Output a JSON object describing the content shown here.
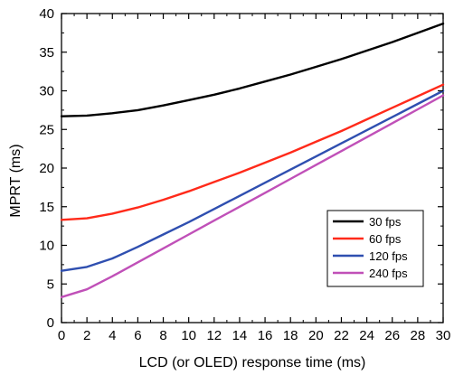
{
  "chart_data": {
    "type": "line",
    "title": "",
    "xlabel": "LCD (or OLED) response time (ms)",
    "ylabel": "MPRT (ms)",
    "xlim": [
      0,
      30
    ],
    "ylim": [
      0,
      40
    ],
    "xticks": [
      "0",
      "2",
      "4",
      "6",
      "8",
      "10",
      "12",
      "14",
      "16",
      "18",
      "20",
      "22",
      "24",
      "26",
      "28",
      "30"
    ],
    "yticks": [
      "0",
      "5",
      "10",
      "15",
      "20",
      "25",
      "30",
      "35",
      "40"
    ],
    "grid": false,
    "legend_position": "bottom-right",
    "x": [
      0,
      2,
      4,
      6,
      8,
      10,
      12,
      14,
      16,
      18,
      20,
      22,
      24,
      26,
      28,
      30
    ],
    "series": [
      {
        "name": "30 fps",
        "color": "#000000",
        "values": [
          26.7,
          26.8,
          27.1,
          27.5,
          28.1,
          28.8,
          29.5,
          30.3,
          31.2,
          32.1,
          33.1,
          34.1,
          35.2,
          36.3,
          37.5,
          38.7
        ]
      },
      {
        "name": "60 fps",
        "color": "#ff2a1a",
        "values": [
          13.3,
          13.5,
          14.1,
          14.9,
          15.9,
          17.0,
          18.2,
          19.4,
          20.7,
          22.0,
          23.4,
          24.8,
          26.3,
          27.8,
          29.3,
          30.8
        ]
      },
      {
        "name": "120 fps",
        "color": "#2f4fb0",
        "values": [
          6.7,
          7.2,
          8.3,
          9.8,
          11.4,
          13.0,
          14.7,
          16.4,
          18.1,
          19.8,
          21.5,
          23.2,
          24.9,
          26.6,
          28.3,
          30.0
        ]
      },
      {
        "name": "240 fps",
        "color": "#c050b8",
        "values": [
          3.3,
          4.3,
          6.0,
          7.8,
          9.6,
          11.4,
          13.2,
          15.0,
          16.8,
          18.6,
          20.4,
          22.2,
          24.0,
          25.8,
          27.6,
          29.4
        ]
      }
    ]
  }
}
